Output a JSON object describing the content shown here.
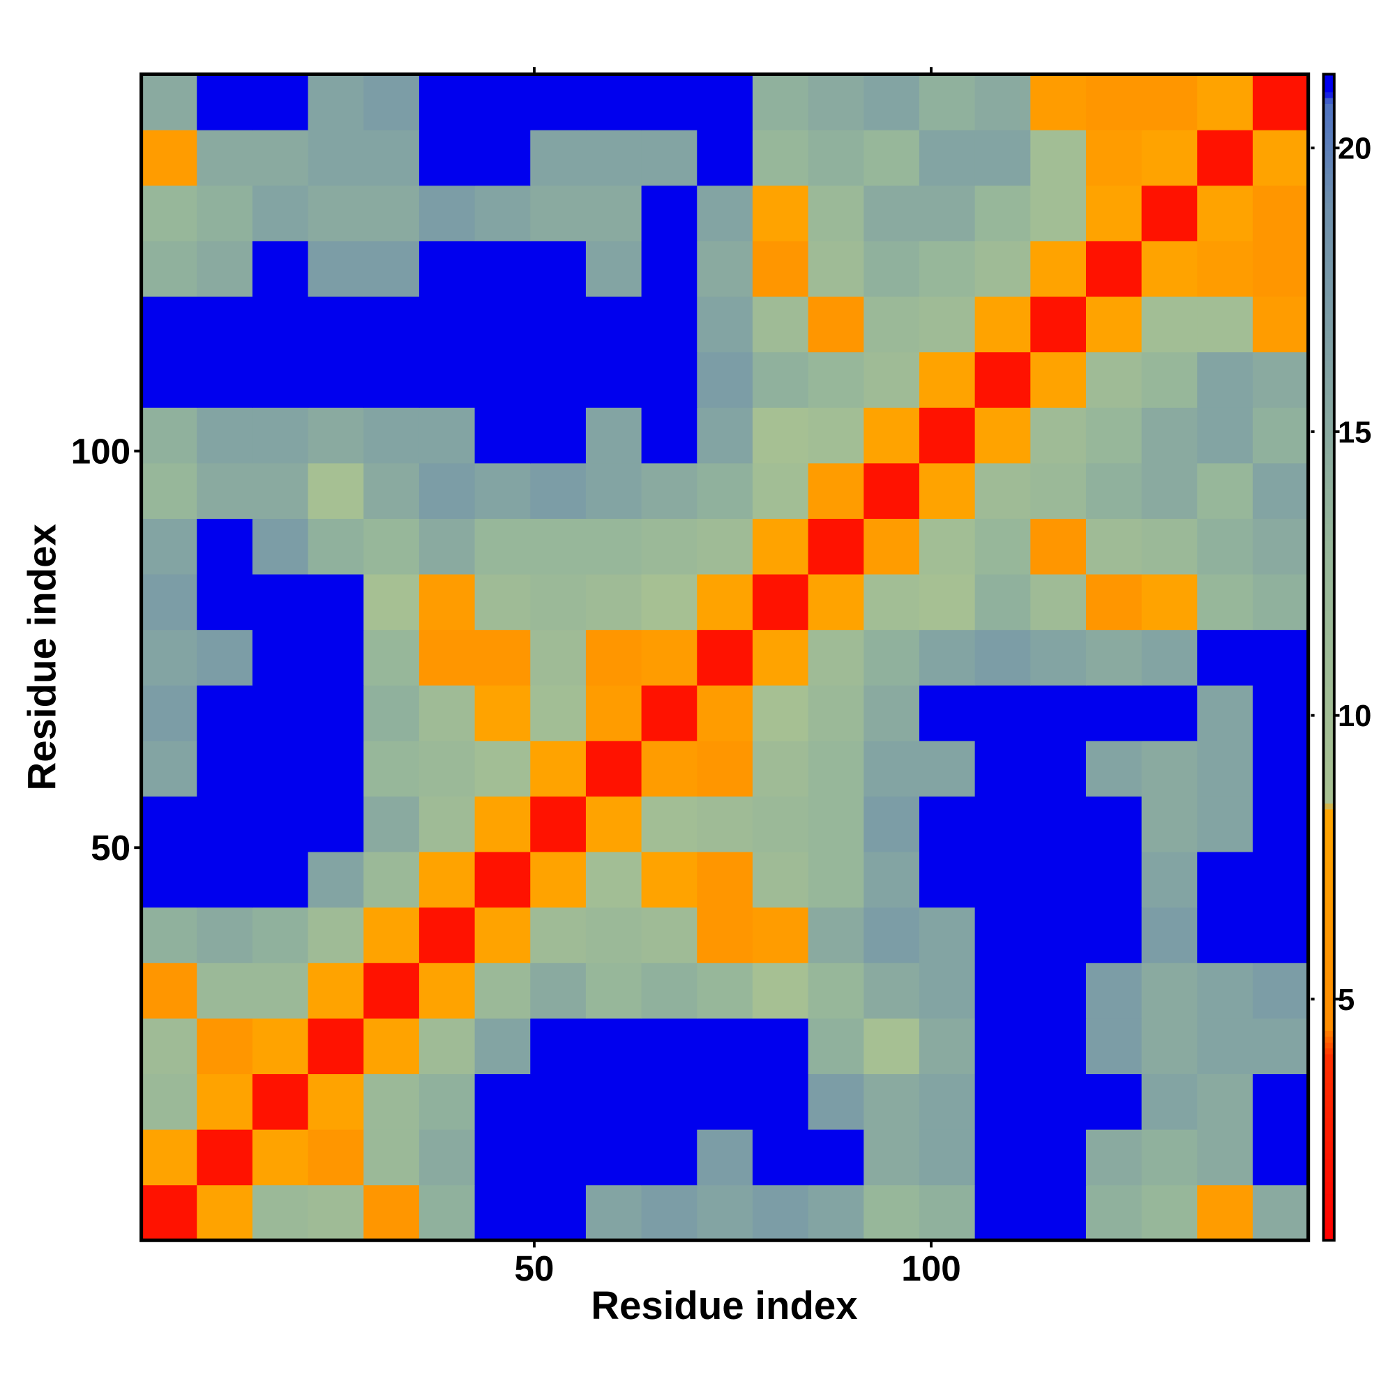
{
  "chart_data": {
    "type": "heatmap",
    "x_label": "Residue index",
    "y_label": "Residue index",
    "xlim": [
      0.5,
      147.5
    ],
    "ylim": [
      0.5,
      147.5
    ],
    "xticks": [
      50,
      100
    ],
    "yticks": [
      50,
      100
    ],
    "xbins": [
      0.5,
      7.5,
      14.5,
      21.5,
      28.5,
      35.5,
      42.5,
      49.5,
      56.5,
      63.5,
      70.5,
      77.5,
      84.5,
      91.5,
      98.5,
      105.5,
      112.5,
      119.5,
      126.5,
      133.5,
      140.5,
      147.5
    ],
    "ybins": [
      0.5,
      7.5,
      14.5,
      21.5,
      28.5,
      35.5,
      42.5,
      49.5,
      56.5,
      63.5,
      70.5,
      77.5,
      84.5,
      91.5,
      98.5,
      105.5,
      112.5,
      119.5,
      126.5,
      133.5,
      140.5,
      147.5
    ],
    "z": [
      [
        2,
        8,
        12,
        11,
        6,
        14,
        21,
        21,
        16,
        17,
        16,
        17,
        16,
        13,
        14,
        21,
        21,
        14,
        13,
        7,
        15
      ],
      [
        8,
        2,
        8,
        6,
        12,
        15,
        21,
        21,
        21,
        21,
        17,
        21,
        21,
        15,
        16,
        21,
        21,
        15,
        14,
        15,
        21
      ],
      [
        12,
        8,
        2,
        8,
        12,
        14,
        21,
        21,
        21,
        21,
        21,
        21,
        17,
        15,
        16,
        21,
        21,
        21,
        16,
        15,
        21
      ],
      [
        11,
        6,
        8,
        2,
        8,
        11,
        16,
        21,
        21,
        21,
        21,
        21,
        14,
        9,
        15,
        21,
        21,
        17,
        15,
        16,
        16
      ],
      [
        6,
        12,
        12,
        8,
        2,
        8,
        12,
        15,
        13,
        14,
        13,
        9,
        13,
        15,
        16,
        21,
        21,
        17,
        15,
        16,
        17
      ],
      [
        14,
        15,
        14,
        11,
        8,
        2,
        8,
        11,
        12,
        11,
        6,
        7,
        15,
        17,
        16,
        21,
        21,
        21,
        17,
        21,
        21
      ],
      [
        21,
        21,
        21,
        16,
        12,
        8,
        2,
        8,
        10,
        8,
        6,
        11,
        13,
        16,
        21,
        21,
        21,
        21,
        16,
        21,
        21
      ],
      [
        21,
        21,
        21,
        21,
        15,
        11,
        8,
        2,
        8,
        10,
        11,
        12,
        13,
        17,
        21,
        21,
        21,
        21,
        15,
        16,
        21
      ],
      [
        16,
        21,
        21,
        21,
        13,
        12,
        10,
        8,
        2,
        7,
        6,
        11,
        13,
        16,
        16,
        21,
        21,
        16,
        15,
        16,
        21
      ],
      [
        17,
        21,
        21,
        21,
        14,
        11,
        8,
        10,
        7,
        2,
        7,
        9,
        12,
        15,
        21,
        21,
        21,
        21,
        21,
        16,
        21
      ],
      [
        16,
        17,
        21,
        21,
        13,
        6,
        6,
        11,
        6,
        7,
        2,
        8,
        11,
        14,
        16,
        17,
        16,
        15,
        16,
        21,
        21
      ],
      [
        17,
        21,
        21,
        21,
        9,
        7,
        11,
        12,
        11,
        9,
        8,
        2,
        8,
        10,
        9,
        14,
        11,
        6,
        8,
        13,
        14
      ],
      [
        16,
        21,
        17,
        14,
        13,
        15,
        13,
        13,
        13,
        12,
        11,
        8,
        2,
        7,
        10,
        13,
        6,
        11,
        12,
        14,
        15
      ],
      [
        13,
        15,
        15,
        9,
        15,
        17,
        16,
        17,
        16,
        15,
        14,
        10,
        7,
        2,
        8,
        11,
        12,
        14,
        15,
        13,
        16
      ],
      [
        14,
        16,
        16,
        15,
        16,
        16,
        21,
        21,
        16,
        21,
        16,
        9,
        10,
        8,
        2,
        8,
        11,
        13,
        15,
        16,
        14
      ],
      [
        21,
        21,
        21,
        21,
        21,
        21,
        21,
        21,
        21,
        21,
        17,
        14,
        13,
        11,
        8,
        2,
        8,
        11,
        13,
        16,
        15
      ],
      [
        21,
        21,
        21,
        21,
        21,
        21,
        21,
        21,
        21,
        21,
        16,
        11,
        6,
        12,
        11,
        8,
        2,
        8,
        10,
        10,
        7
      ],
      [
        14,
        15,
        21,
        17,
        17,
        21,
        21,
        21,
        16,
        21,
        15,
        6,
        11,
        14,
        13,
        11,
        8,
        2,
        8,
        7,
        6
      ],
      [
        13,
        14,
        16,
        15,
        15,
        17,
        16,
        15,
        15,
        21,
        16,
        8,
        12,
        15,
        15,
        13,
        10,
        8,
        2,
        8,
        6
      ],
      [
        7,
        15,
        15,
        16,
        16,
        21,
        21,
        16,
        16,
        16,
        21,
        13,
        14,
        13,
        16,
        16,
        10,
        7,
        8,
        2,
        8
      ],
      [
        15,
        21,
        21,
        16,
        17,
        21,
        21,
        21,
        21,
        21,
        21,
        14,
        15,
        16,
        14,
        15,
        7,
        6,
        6,
        8,
        2
      ]
    ],
    "colorscale": [
      [
        0.75,
        "#ff0000"
      ],
      [
        4,
        "#ff3000"
      ],
      [
        4.5,
        "#ff8c00"
      ],
      [
        8.3,
        "#ffa500"
      ],
      [
        8.5,
        "#a8c192"
      ],
      [
        13,
        "#97b79a"
      ],
      [
        19,
        "#6f90ac"
      ],
      [
        20.8,
        "#4f72c2"
      ],
      [
        21,
        "#0000ee"
      ]
    ],
    "colorbar": {
      "lim": [
        0.75,
        21.3
      ],
      "ticks": [
        5,
        10,
        15,
        20
      ]
    }
  }
}
